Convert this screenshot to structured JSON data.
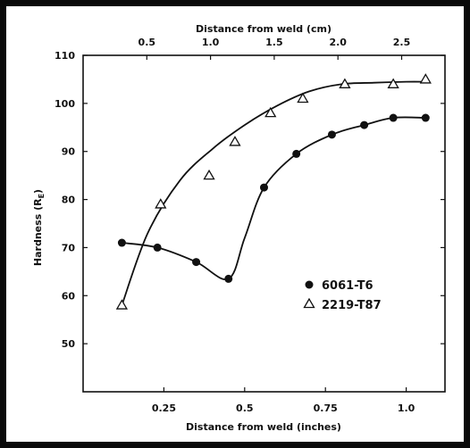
{
  "chart_data": {
    "type": "scatter",
    "title": "",
    "xlabel": "Distance from weld (inches)",
    "x2label": "Distance from weld (cm)",
    "ylabel": "Hardness (R",
    "ylabel_sub": "E",
    "ylabel_close": ")",
    "xlim": [
      0,
      1.12
    ],
    "ylim": [
      40,
      110
    ],
    "x2lim": [
      0,
      2.84
    ],
    "x_ticks": [
      0.25,
      0.5,
      0.75,
      1.0
    ],
    "x_tick_labels": [
      "0.25",
      "0.5",
      "0.75",
      "1.0"
    ],
    "x2_ticks": [
      0.5,
      1.0,
      1.5,
      2.0,
      2.5
    ],
    "x2_tick_labels": [
      "0.5",
      "1.0",
      "1.5",
      "2.0",
      "2.5"
    ],
    "y_ticks": [
      50,
      60,
      70,
      80,
      90,
      100,
      110
    ],
    "y_tick_labels": [
      "50",
      "60",
      "70",
      "80",
      "90",
      "100",
      "110"
    ],
    "grid": false,
    "legend_position": "lower-right",
    "series": [
      {
        "name": "6061-T6",
        "marker": "circle-filled",
        "color": "#111111",
        "x": [
          0.12,
          0.23,
          0.35,
          0.45,
          0.56,
          0.66,
          0.77,
          0.87,
          0.96,
          1.06
        ],
        "y": [
          71,
          70,
          67,
          63.5,
          82.5,
          89.5,
          93.5,
          95.5,
          97,
          97
        ],
        "curve_x": [
          0.12,
          0.23,
          0.35,
          0.45,
          0.5,
          0.56,
          0.66,
          0.77,
          0.87,
          0.96,
          1.06
        ],
        "curve_y": [
          71,
          70,
          67,
          63.5,
          72,
          82.5,
          89.5,
          93.5,
          95.5,
          97,
          97
        ]
      },
      {
        "name": "2219-T87",
        "marker": "triangle-open",
        "color": "#111111",
        "x": [
          0.12,
          0.24,
          0.39,
          0.47,
          0.58,
          0.68,
          0.81,
          0.96,
          1.06
        ],
        "y": [
          58,
          79,
          85,
          92,
          98,
          101,
          104,
          104,
          105
        ],
        "curve_x": [
          0.12,
          0.2,
          0.3,
          0.4,
          0.5,
          0.6,
          0.7,
          0.8,
          0.9,
          1.0,
          1.06
        ],
        "curve_y": [
          58,
          73,
          84,
          90.5,
          95.5,
          99.5,
          102.5,
          104,
          104.3,
          104.5,
          104.5
        ]
      }
    ]
  }
}
